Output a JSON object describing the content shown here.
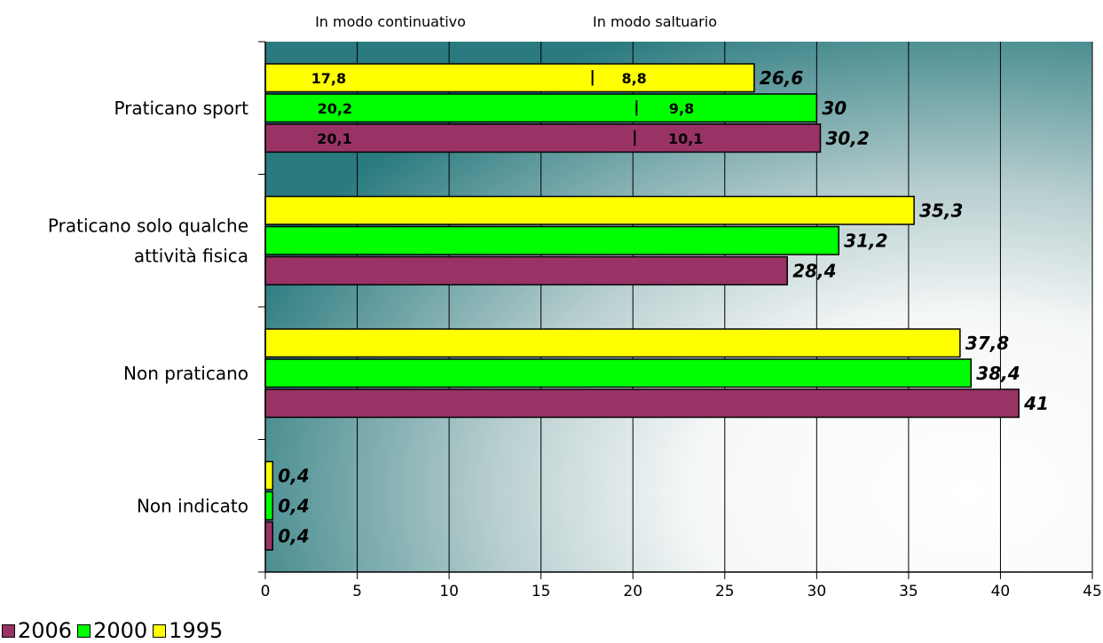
{
  "chart_data": {
    "type": "bar",
    "orientation": "horizontal",
    "categories": [
      "Praticano sport",
      "Praticano solo qualche attività fisica",
      "Non praticano",
      "Non indicato"
    ],
    "category_lines": [
      [
        "Praticano sport"
      ],
      [
        "Praticano solo qualche",
        "attività fisica"
      ],
      [
        "Non praticano"
      ],
      [
        "Non indicato"
      ]
    ],
    "series": [
      {
        "name": "1995",
        "color": "#ffff00",
        "values": [
          26.6,
          35.3,
          37.8,
          0.4
        ],
        "labels": [
          "26,6",
          "35,3",
          "37,8",
          "0,4"
        ]
      },
      {
        "name": "2000",
        "color": "#00ff00",
        "values": [
          30,
          31.2,
          38.4,
          0.4
        ],
        "labels": [
          "30",
          "31,2",
          "38,4",
          "0,4"
        ]
      },
      {
        "name": "2006",
        "color": "#993366",
        "values": [
          30.2,
          28.4,
          41,
          0.4
        ],
        "labels": [
          "30,2",
          "28,4",
          "41",
          "0,4"
        ]
      }
    ],
    "sport_breakdown": [
      {
        "series": "1995",
        "continuativo": 17.8,
        "saltuario": 8.8,
        "labels": [
          "17,8",
          "8,8"
        ]
      },
      {
        "series": "2000",
        "continuativo": 20.2,
        "saltuario": 9.8,
        "labels": [
          "20,2",
          "9,8"
        ]
      },
      {
        "series": "2006",
        "continuativo": 20.1,
        "saltuario": 10.1,
        "labels": [
          "20,1",
          "10,1"
        ]
      }
    ],
    "header_labels": [
      "In modo continuativo",
      "In modo saltuario"
    ],
    "xlim": [
      0,
      45
    ],
    "xticks": [
      0,
      5,
      10,
      15,
      20,
      25,
      30,
      35,
      40,
      45
    ],
    "grid": true,
    "legend_position": "bottom-left",
    "legend_order": [
      "2006",
      "2000",
      "1995"
    ]
  }
}
